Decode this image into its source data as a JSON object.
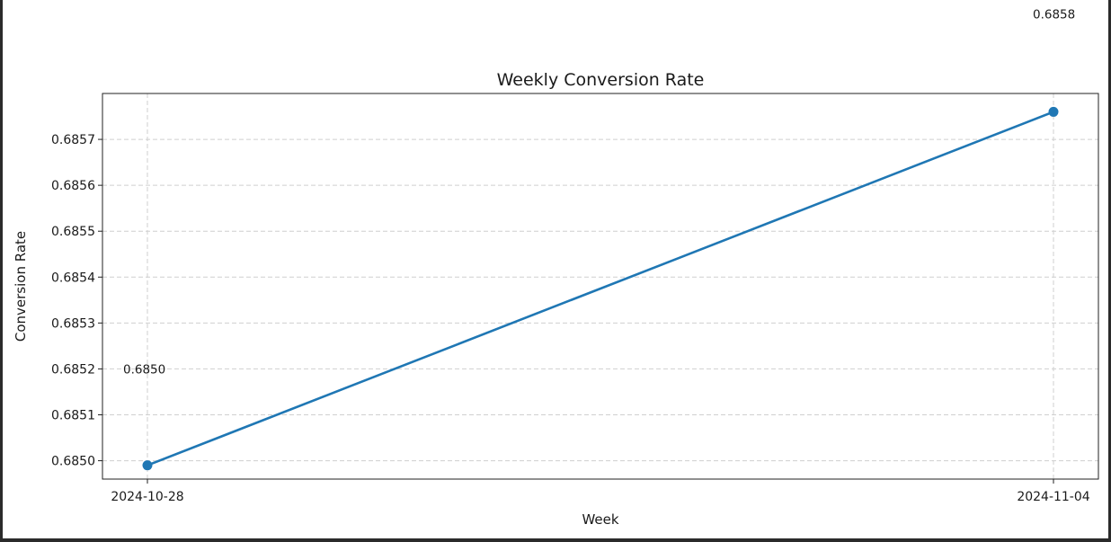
{
  "chart_data": {
    "type": "line",
    "title": "Weekly Conversion Rate",
    "xlabel": "Week",
    "ylabel": "Conversion Rate",
    "x": [
      "2024-10-28",
      "2024-11-04"
    ],
    "series": [
      {
        "values": [
          0.68499,
          0.68576
        ],
        "color": "#1f77b4",
        "marker": "circle"
      }
    ],
    "ylim": [
      0.68496,
      0.6858
    ],
    "yticks": [
      0.685,
      0.6851,
      0.6852,
      0.6853,
      0.6854,
      0.6855,
      0.6856,
      0.6857
    ],
    "ytick_labels": [
      "0.6850",
      "0.6851",
      "0.6852",
      "0.6853",
      "0.6854",
      "0.6855",
      "0.6856",
      "0.6857"
    ],
    "grid": true,
    "grid_style": "dashed",
    "annotations": [
      {
        "text": "0.6850",
        "for_point": 0
      },
      {
        "text": "0.6858",
        "for_point": 1
      }
    ]
  }
}
